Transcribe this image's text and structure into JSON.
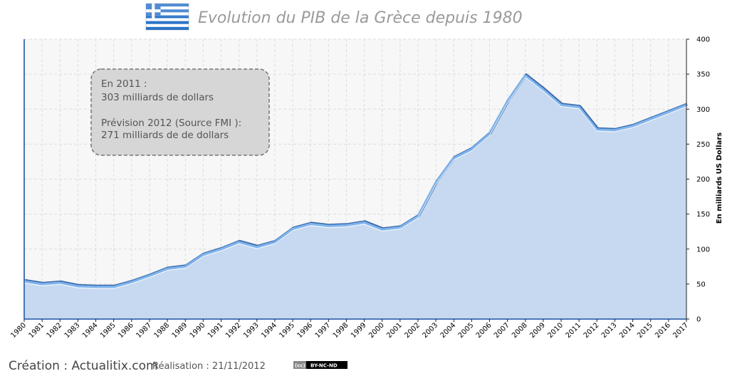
{
  "title": "Evolution du PIB de la Grèce depuis 1980",
  "ylabel": "En milliards US Dollars",
  "annotation": {
    "line1": "En 2011 :",
    "line2": "303 milliards  de dollars",
    "line3": "Prévision 2012 (Source FMI ):",
    "line4": "271 milliards  de de dollars"
  },
  "footer": {
    "credit": "Création : Actualitix.com",
    "date": "Réalisation : 21/11/2012",
    "license": "BY-NC-ND",
    "license_prefix": "(cc)"
  },
  "colors": {
    "area_fill": "#c6d9f0",
    "line_light": "#7eb4ee",
    "line_dark": "#3c69a8",
    "plot_bg": "#f7f7f7",
    "grid": "#dddddd"
  },
  "icons": {
    "flag": "greece-flag-icon"
  },
  "chart_data": {
    "type": "area",
    "title": "Evolution du PIB de la Grèce depuis 1980",
    "ylabel": "En milliards US Dollars",
    "xlabel": "",
    "ylim": [
      0,
      400
    ],
    "yticks": [
      0,
      50,
      100,
      150,
      200,
      250,
      300,
      350,
      400
    ],
    "axis_position": "right",
    "grid": true,
    "x": [
      "1980",
      "1981",
      "1982",
      "1983",
      "1984",
      "1985",
      "1986",
      "1987",
      "1988",
      "1989",
      "1990",
      "1991",
      "1992",
      "1993",
      "1994",
      "1995",
      "1996",
      "1997",
      "1998",
      "1999",
      "2000",
      "2001",
      "2002",
      "2003",
      "2004",
      "2005",
      "2006",
      "2007",
      "2008",
      "2009",
      "2010",
      "2011",
      "2012",
      "2013",
      "2014",
      "2015",
      "2016",
      "2017"
    ],
    "series": [
      {
        "values": [
          54,
          50,
          52,
          47,
          46,
          46,
          53,
          62,
          72,
          75,
          92,
          100,
          110,
          103,
          110,
          129,
          136,
          133,
          134,
          138,
          128,
          131,
          147,
          195,
          230,
          243,
          265,
          311,
          348,
          328,
          306,
          303,
          271,
          270,
          276,
          286,
          296,
          306
        ]
      }
    ]
  }
}
